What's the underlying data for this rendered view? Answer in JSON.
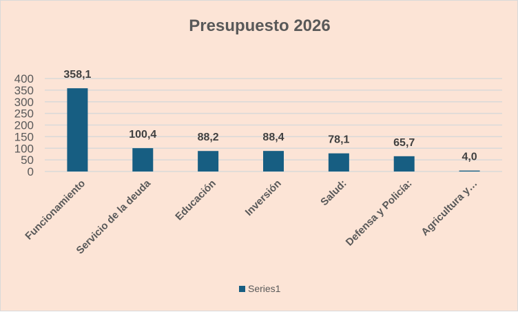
{
  "chart_data": {
    "type": "bar",
    "title": "Presupuesto 2026",
    "categories": [
      "Funcionamiento",
      "Servicio de la deuda",
      "Educación",
      "Inversión",
      "Salud:",
      "Defensa y Policía:",
      "Agricultura y…"
    ],
    "series": [
      {
        "name": "Series1",
        "values": [
          358.1,
          100.4,
          88.2,
          88.4,
          78.1,
          65.7,
          4.0
        ],
        "labels": [
          "358,1",
          "100,4",
          "88,2",
          "88,4",
          "78,1",
          "65,7",
          "4,0"
        ]
      }
    ],
    "ylim": [
      0,
      400
    ],
    "yticks": [
      0,
      50,
      100,
      150,
      200,
      250,
      300,
      350,
      400
    ],
    "xlabel": "",
    "ylabel": "",
    "grid": true,
    "legend": "bottom",
    "colors": {
      "bar": "#175E82",
      "background": "#FCE4D6",
      "grid": "#D9D9D9",
      "text": "#595959"
    }
  }
}
